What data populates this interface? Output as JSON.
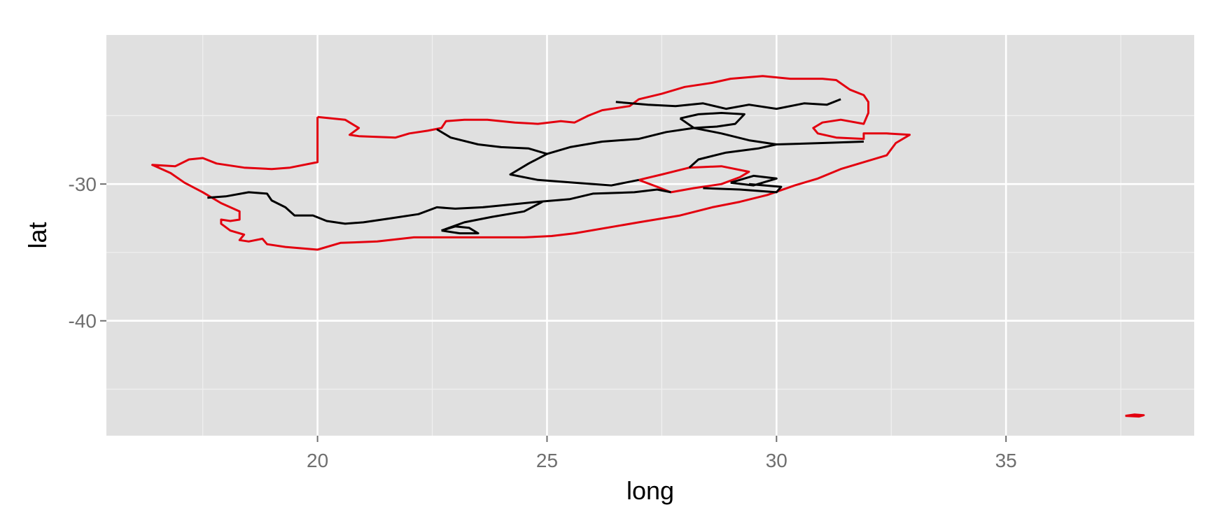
{
  "chart_data": {
    "type": "map",
    "xlabel": "long",
    "ylabel": "lat",
    "xlim": [
      15.4,
      39.1
    ],
    "ylim": [
      -48.4,
      -19.1
    ],
    "x_ticks": [
      20,
      25,
      30,
      35
    ],
    "x_tick_labels": [
      "20",
      "25",
      "30",
      "35"
    ],
    "y_ticks": [
      -30,
      -40
    ],
    "y_tick_labels": [
      "-30",
      "-40"
    ],
    "x_minor": [
      17.5,
      22.5,
      27.5,
      32.5,
      37.5
    ],
    "y_minor": [
      -25,
      -35,
      -45
    ],
    "grid": true,
    "colors": {
      "panel": "#e0e0e0",
      "grid_major": "#ffffff",
      "grid_minor": "#f0f0f0",
      "tick": "#6f6f6f",
      "country_outline": "#e3000f",
      "internal_borders": "#000000"
    },
    "outlines": [
      {
        "role": "country-outline",
        "color": "#e3000f",
        "points": [
          [
            20.0,
            -25.1
          ],
          [
            20.6,
            -25.3
          ],
          [
            20.9,
            -25.9
          ],
          [
            20.7,
            -26.4
          ],
          [
            20.9,
            -26.5
          ],
          [
            21.7,
            -26.6
          ],
          [
            22.0,
            -26.3
          ],
          [
            22.4,
            -26.1
          ],
          [
            22.7,
            -25.9
          ],
          [
            22.8,
            -25.4
          ],
          [
            23.2,
            -25.3
          ],
          [
            23.7,
            -25.3
          ],
          [
            24.3,
            -25.5
          ],
          [
            24.8,
            -25.6
          ],
          [
            25.3,
            -25.4
          ],
          [
            25.6,
            -25.5
          ],
          [
            25.9,
            -25.0
          ],
          [
            26.2,
            -24.6
          ],
          [
            26.8,
            -24.3
          ],
          [
            27.0,
            -23.8
          ],
          [
            27.5,
            -23.4
          ],
          [
            28.0,
            -22.9
          ],
          [
            28.6,
            -22.6
          ],
          [
            29.0,
            -22.3
          ],
          [
            29.7,
            -22.1
          ],
          [
            30.3,
            -22.3
          ],
          [
            31.0,
            -22.3
          ],
          [
            31.3,
            -22.4
          ],
          [
            31.6,
            -23.1
          ],
          [
            31.9,
            -23.5
          ],
          [
            32.0,
            -24.0
          ],
          [
            32.0,
            -24.8
          ],
          [
            31.9,
            -25.6
          ],
          [
            31.4,
            -25.3
          ],
          [
            31.0,
            -25.5
          ],
          [
            30.8,
            -25.9
          ],
          [
            30.9,
            -26.3
          ],
          [
            31.3,
            -26.6
          ],
          [
            31.9,
            -26.7
          ],
          [
            31.9,
            -26.3
          ],
          [
            32.4,
            -26.3
          ],
          [
            32.9,
            -26.4
          ],
          [
            32.6,
            -27.0
          ],
          [
            32.4,
            -27.9
          ],
          [
            31.4,
            -28.9
          ],
          [
            30.9,
            -29.6
          ],
          [
            30.4,
            -30.1
          ],
          [
            29.8,
            -30.8
          ],
          [
            29.2,
            -31.3
          ],
          [
            28.6,
            -31.7
          ],
          [
            27.9,
            -32.3
          ],
          [
            27.0,
            -32.8
          ],
          [
            25.6,
            -33.6
          ],
          [
            25.1,
            -33.8
          ],
          [
            24.5,
            -33.9
          ],
          [
            23.9,
            -33.9
          ],
          [
            23.0,
            -33.9
          ],
          [
            22.1,
            -33.9
          ],
          [
            21.3,
            -34.2
          ],
          [
            20.5,
            -34.3
          ],
          [
            20.0,
            -34.8
          ],
          [
            19.3,
            -34.6
          ],
          [
            18.9,
            -34.4
          ],
          [
            18.8,
            -34.0
          ],
          [
            18.5,
            -34.2
          ],
          [
            18.3,
            -34.1
          ],
          [
            18.4,
            -33.7
          ],
          [
            18.1,
            -33.4
          ],
          [
            17.9,
            -32.9
          ],
          [
            17.9,
            -32.6
          ],
          [
            18.1,
            -32.7
          ],
          [
            18.3,
            -32.6
          ],
          [
            18.3,
            -32.0
          ],
          [
            17.9,
            -31.4
          ],
          [
            17.5,
            -30.6
          ],
          [
            17.1,
            -29.9
          ],
          [
            16.8,
            -29.2
          ],
          [
            16.4,
            -28.6
          ],
          [
            16.9,
            -28.7
          ],
          [
            17.2,
            -28.2
          ],
          [
            17.5,
            -28.1
          ],
          [
            17.8,
            -28.5
          ],
          [
            18.4,
            -28.8
          ],
          [
            19.0,
            -28.9
          ],
          [
            19.4,
            -28.8
          ],
          [
            20.0,
            -28.4
          ],
          [
            20.0,
            -25.1
          ]
        ]
      },
      {
        "role": "lesotho-enclave",
        "color": "#e3000f",
        "points": [
          [
            27.0,
            -29.7
          ],
          [
            27.5,
            -29.3
          ],
          [
            28.1,
            -28.8
          ],
          [
            28.8,
            -28.7
          ],
          [
            29.4,
            -29.1
          ],
          [
            29.2,
            -29.5
          ],
          [
            28.8,
            -30.0
          ],
          [
            28.2,
            -30.3
          ],
          [
            27.7,
            -30.6
          ],
          [
            27.4,
            -30.2
          ],
          [
            27.0,
            -29.7
          ]
        ]
      },
      {
        "role": "prince-edward-islands",
        "color": "#e3000f",
        "points": [
          [
            37.6,
            -46.95
          ],
          [
            37.8,
            -46.85
          ],
          [
            38.0,
            -46.9
          ],
          [
            37.9,
            -47.0
          ],
          [
            37.6,
            -46.95
          ]
        ]
      },
      {
        "role": "internal-border",
        "color": "#000000",
        "points": [
          [
            17.6,
            -31.0
          ],
          [
            18.0,
            -30.9
          ],
          [
            18.5,
            -30.6
          ],
          [
            18.9,
            -30.7
          ],
          [
            19.0,
            -31.2
          ],
          [
            19.3,
            -31.7
          ],
          [
            19.5,
            -32.3
          ],
          [
            19.9,
            -32.3
          ],
          [
            20.2,
            -32.7
          ],
          [
            20.6,
            -32.9
          ],
          [
            21.0,
            -32.8
          ],
          [
            21.6,
            -32.5
          ],
          [
            22.2,
            -32.2
          ],
          [
            22.6,
            -31.7
          ],
          [
            23.0,
            -31.8
          ],
          [
            23.6,
            -31.7
          ],
          [
            24.2,
            -31.5
          ],
          [
            24.8,
            -31.3
          ],
          [
            25.5,
            -31.1
          ],
          [
            26.0,
            -30.7
          ],
          [
            26.9,
            -30.6
          ],
          [
            27.4,
            -30.4
          ],
          [
            27.7,
            -30.6
          ]
        ]
      },
      {
        "role": "internal-border",
        "color": "#000000",
        "points": [
          [
            22.7,
            -33.4
          ],
          [
            23.0,
            -33.1
          ],
          [
            23.3,
            -33.2
          ],
          [
            23.5,
            -33.6
          ],
          [
            23.1,
            -33.6
          ],
          [
            22.7,
            -33.4
          ]
        ]
      },
      {
        "role": "internal-border",
        "color": "#000000",
        "points": [
          [
            22.7,
            -33.4
          ],
          [
            23.2,
            -32.8
          ],
          [
            23.8,
            -32.4
          ],
          [
            24.5,
            -32.0
          ],
          [
            24.9,
            -31.3
          ]
        ]
      },
      {
        "role": "internal-border",
        "color": "#000000",
        "points": [
          [
            22.6,
            -26.0
          ],
          [
            22.9,
            -26.6
          ],
          [
            23.5,
            -27.1
          ],
          [
            24.0,
            -27.3
          ],
          [
            24.6,
            -27.4
          ],
          [
            25.0,
            -27.8
          ],
          [
            24.6,
            -28.5
          ],
          [
            24.2,
            -29.3
          ],
          [
            24.8,
            -29.7
          ],
          [
            25.6,
            -29.9
          ],
          [
            26.4,
            -30.1
          ],
          [
            27.0,
            -29.7
          ]
        ]
      },
      {
        "role": "internal-border",
        "color": "#000000",
        "points": [
          [
            25.0,
            -27.8
          ],
          [
            25.5,
            -27.3
          ],
          [
            26.2,
            -26.9
          ],
          [
            27.0,
            -26.7
          ],
          [
            27.6,
            -26.2
          ],
          [
            28.2,
            -25.9
          ],
          [
            28.8,
            -26.3
          ],
          [
            29.4,
            -26.8
          ],
          [
            30.0,
            -27.1
          ],
          [
            31.0,
            -27.0
          ],
          [
            31.9,
            -26.9
          ]
        ]
      },
      {
        "role": "internal-border",
        "color": "#000000",
        "points": [
          [
            30.0,
            -27.1
          ],
          [
            29.6,
            -27.4
          ],
          [
            28.9,
            -27.7
          ],
          [
            28.3,
            -28.2
          ],
          [
            28.1,
            -28.8
          ]
        ]
      },
      {
        "role": "internal-border",
        "color": "#000000",
        "points": [
          [
            26.5,
            -24.0
          ],
          [
            27.2,
            -24.2
          ],
          [
            27.8,
            -24.3
          ],
          [
            28.4,
            -24.1
          ],
          [
            28.9,
            -24.5
          ],
          [
            29.4,
            -24.2
          ],
          [
            30.0,
            -24.5
          ],
          [
            30.6,
            -24.1
          ],
          [
            31.1,
            -24.2
          ],
          [
            31.4,
            -23.8
          ]
        ]
      },
      {
        "role": "internal-border",
        "color": "#000000",
        "points": [
          [
            27.9,
            -25.2
          ],
          [
            28.3,
            -24.9
          ],
          [
            28.8,
            -24.8
          ],
          [
            29.3,
            -24.9
          ],
          [
            29.1,
            -25.6
          ],
          [
            28.7,
            -25.8
          ],
          [
            28.2,
            -25.9
          ],
          [
            27.9,
            -25.2
          ]
        ]
      },
      {
        "role": "internal-border",
        "color": "#000000",
        "points": [
          [
            29.0,
            -29.9
          ],
          [
            29.5,
            -30.1
          ],
          [
            30.0,
            -29.6
          ],
          [
            29.5,
            -29.4
          ],
          [
            29.0,
            -29.9
          ]
        ]
      },
      {
        "role": "internal-border",
        "color": "#000000",
        "points": [
          [
            28.4,
            -30.3
          ],
          [
            29.2,
            -30.4
          ],
          [
            30.0,
            -30.6
          ],
          [
            30.1,
            -30.2
          ],
          [
            29.4,
            -30.0
          ]
        ]
      }
    ]
  }
}
